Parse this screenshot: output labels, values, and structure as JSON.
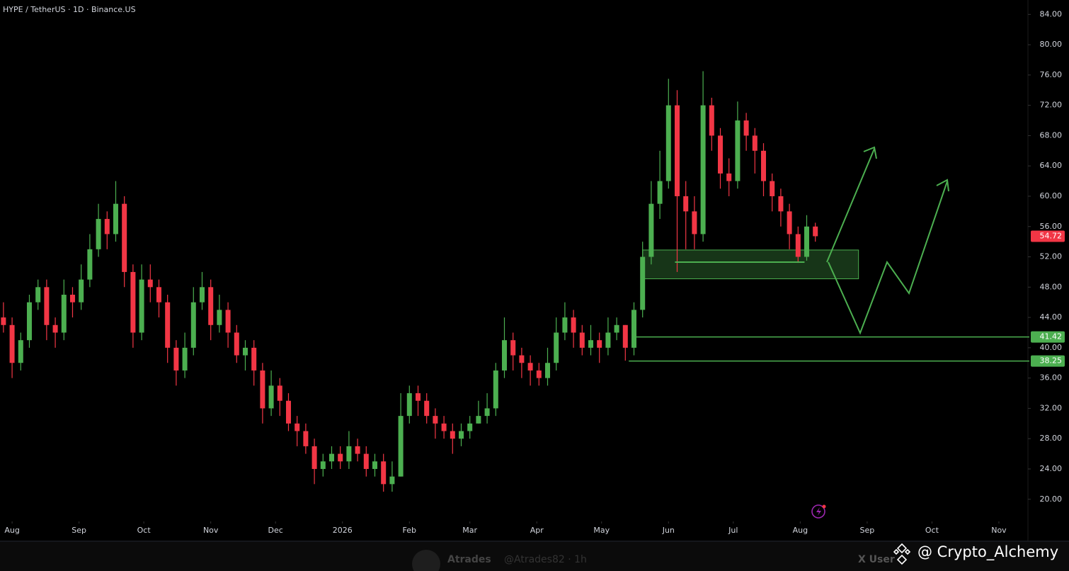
{
  "chart_data": {
    "type": "candlestick",
    "title": "HYPE / TetherUS · 1D · Binance.US",
    "up_color": "#4caf50",
    "down_color": "#f23645",
    "annotation_color": "#4caf50",
    "x": [
      -4,
      0,
      4,
      8,
      12,
      16,
      20,
      24,
      28,
      32,
      36,
      40,
      44,
      48,
      52,
      56,
      60,
      64,
      68,
      72,
      76,
      80,
      84,
      88,
      92,
      96,
      100,
      104,
      108,
      112,
      116,
      120,
      124,
      128,
      132,
      136,
      140,
      144,
      148,
      152,
      156,
      160,
      164,
      168,
      172,
      176,
      180,
      184,
      188,
      192,
      196,
      200,
      204,
      208,
      212,
      216,
      220,
      224,
      228,
      232,
      236,
      240,
      244,
      248,
      252,
      256,
      260,
      264,
      268,
      272,
      276,
      280,
      284,
      288,
      292,
      296,
      300,
      304,
      308,
      312,
      316,
      320,
      324,
      328,
      332,
      336,
      340,
      344,
      348,
      352,
      356,
      360,
      364,
      368,
      372
    ],
    "open": [
      44,
      43,
      38,
      41,
      46,
      48,
      43,
      42,
      47,
      46,
      49,
      53,
      57,
      55,
      59,
      50,
      42,
      49,
      48,
      46,
      40,
      37,
      40,
      46,
      48,
      43,
      45,
      42,
      39,
      40,
      37,
      32,
      35,
      33,
      30,
      29,
      27,
      24,
      25,
      26,
      25,
      27,
      26,
      24,
      25,
      22,
      23,
      31,
      34,
      33,
      31,
      30,
      29,
      28,
      29,
      30,
      31,
      32,
      37,
      41,
      39,
      38,
      37,
      36,
      38,
      42,
      44,
      42,
      40,
      41,
      40,
      42,
      43,
      40,
      45,
      52,
      59,
      62,
      72,
      60,
      58,
      55,
      72,
      68,
      63,
      62,
      70,
      68,
      66,
      62,
      60,
      58,
      55,
      52,
      56
    ],
    "high": [
      46,
      44,
      42,
      47,
      49,
      49,
      44,
      49,
      48,
      51,
      55,
      59,
      58,
      62,
      60,
      51,
      51,
      51,
      49,
      47,
      41,
      42,
      48,
      50,
      49,
      47,
      46,
      43,
      41,
      41,
      38,
      37,
      36,
      34,
      31,
      30,
      28,
      26,
      27,
      27,
      29,
      28,
      27,
      26,
      26,
      25,
      34,
      35,
      35,
      34,
      32,
      31,
      30,
      30,
      31,
      33,
      34,
      38,
      44,
      42,
      40,
      39,
      38,
      40,
      44,
      46,
      45,
      43,
      43,
      42,
      44,
      44,
      43,
      46,
      54,
      62,
      66,
      75.5,
      74,
      62,
      60,
      76.5,
      73,
      69,
      65,
      72.5,
      71,
      69,
      67,
      63,
      61,
      59,
      56,
      57.5,
      56.5
    ],
    "low": [
      42,
      36,
      37,
      40,
      45,
      41,
      40,
      41,
      44,
      45,
      48,
      52,
      53,
      54,
      48,
      40,
      41,
      46,
      44,
      38,
      35,
      36,
      39,
      45,
      41,
      42,
      40,
      38,
      37,
      35,
      30,
      31,
      31,
      29,
      27,
      26,
      22,
      23,
      24,
      24,
      24,
      25,
      23,
      23,
      21,
      21,
      23,
      30,
      31,
      30,
      28,
      28,
      26,
      27,
      28,
      30,
      30,
      31,
      36,
      37,
      36,
      35,
      35,
      35,
      37,
      41,
      40,
      39,
      39,
      38,
      39,
      41,
      38.3,
      39,
      44,
      51,
      57,
      61,
      50,
      53,
      53,
      54,
      66,
      61,
      60,
      61,
      66,
      63,
      60,
      58,
      56,
      53,
      51.2,
      51.5,
      54
    ],
    "close": [
      43,
      38,
      41,
      46,
      48,
      43,
      42,
      47,
      46,
      49,
      53,
      57,
      55,
      59,
      50,
      42,
      49,
      48,
      46,
      40,
      37,
      40,
      46,
      48,
      43,
      45,
      42,
      39,
      40,
      37,
      32,
      35,
      33,
      30,
      29,
      27,
      24,
      25,
      26,
      25,
      27,
      26,
      24,
      25,
      22,
      23,
      31,
      34,
      33,
      31,
      30,
      29,
      28,
      29,
      30,
      31,
      32,
      37,
      41,
      39,
      38,
      37,
      36,
      38,
      42,
      44,
      42,
      40,
      41,
      40,
      42,
      43,
      40,
      45,
      52,
      59,
      62,
      72,
      60,
      58,
      55,
      72,
      68,
      63,
      62,
      70,
      68,
      66,
      62,
      60,
      58,
      55,
      52,
      56,
      54.72
    ],
    "xlim": [
      -5.6,
      469.8
    ],
    "xticks": [
      {
        "value": 0,
        "label": "Aug"
      },
      {
        "value": 31,
        "label": "Sep"
      },
      {
        "value": 61,
        "label": "Oct"
      },
      {
        "value": 92,
        "label": "Nov"
      },
      {
        "value": 122,
        "label": "Dec"
      },
      {
        "value": 153,
        "label": "2026"
      },
      {
        "value": 184,
        "label": "Feb"
      },
      {
        "value": 212,
        "label": "Mar"
      },
      {
        "value": 243,
        "label": "Apr"
      },
      {
        "value": 273,
        "label": "May"
      },
      {
        "value": 304,
        "label": "Jun"
      },
      {
        "value": 334,
        "label": "Jul"
      },
      {
        "value": 365,
        "label": "Aug"
      },
      {
        "value": 396,
        "label": "Sep"
      },
      {
        "value": 426,
        "label": "Oct"
      },
      {
        "value": 457,
        "label": "Nov"
      }
    ],
    "ylim": [
      18.2,
      85.9
    ],
    "yticks": [
      {
        "value": 20,
        "label": "20.00"
      },
      {
        "value": 24,
        "label": "24.00"
      },
      {
        "value": 28,
        "label": "28.00"
      },
      {
        "value": 32,
        "label": "32.00"
      },
      {
        "value": 36,
        "label": "36.00"
      },
      {
        "value": 40,
        "label": "40.00"
      },
      {
        "value": 44,
        "label": "44.00"
      },
      {
        "value": 48,
        "label": "48.00"
      },
      {
        "value": 52,
        "label": "52.00"
      },
      {
        "value": 56,
        "label": "56.00"
      },
      {
        "value": 60,
        "label": "60.00"
      },
      {
        "value": 64,
        "label": "64.00"
      },
      {
        "value": 68,
        "label": "68.00"
      },
      {
        "value": 72,
        "label": "72.00"
      },
      {
        "value": 76,
        "label": "76.00"
      },
      {
        "value": 80,
        "label": "80.00"
      },
      {
        "value": 84,
        "label": "84.00"
      }
    ],
    "zone": {
      "x": [
        292,
        392
      ],
      "y": [
        49.1,
        52.9
      ]
    },
    "support": {
      "x": [
        307,
        367
      ],
      "value": 51.3
    },
    "levels": [
      {
        "value": 41.42,
        "x": 288.5
      },
      {
        "value": 38.25,
        "x": 285.6
      }
    ]
  },
  "watermark": "@ Crypto_Alchemy",
  "footer": {
    "author": "Atrades",
    "handle": "@Atrades82 · 1h",
    "side": "X User"
  }
}
